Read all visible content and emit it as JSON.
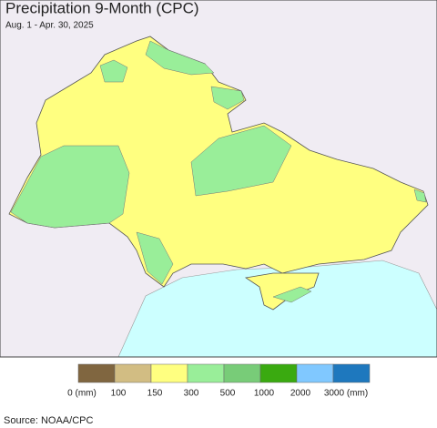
{
  "header": {
    "title": "Precipitation 9-Month (CPC)",
    "subtitle": "Aug. 1 - Apr. 30, 2025"
  },
  "legend": {
    "items": [
      {
        "color": "#806640",
        "label": "0 (mm)"
      },
      {
        "color": "#d2bd83",
        "label": "100"
      },
      {
        "color": "#ffff80",
        "label": "150"
      },
      {
        "color": "#99ee99",
        "label": "300"
      },
      {
        "color": "#78cc78",
        "label": "500"
      },
      {
        "color": "#3aaa10",
        "label": "1000"
      },
      {
        "color": "#80c8ff",
        "label": "2000"
      },
      {
        "color": "#1e78be",
        "label": "3000 (mm)"
      }
    ]
  },
  "source": "Source: NOAA/CPC"
}
